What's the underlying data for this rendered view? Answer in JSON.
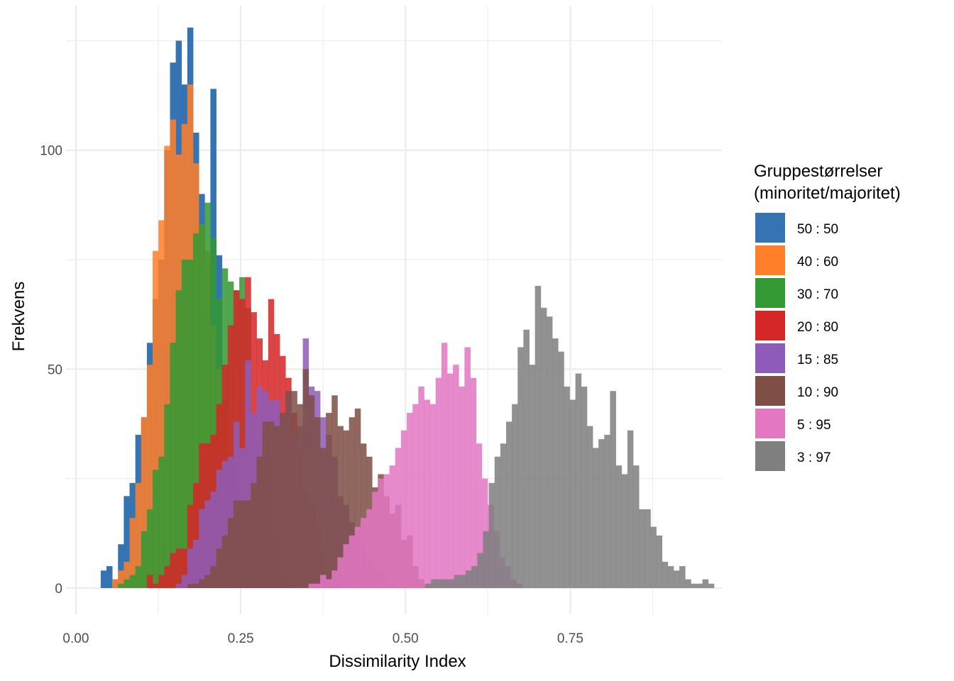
{
  "chart_data": {
    "type": "histogram",
    "xlabel": "Dissimilarity Index",
    "ylabel": "Frekvens",
    "xlim": [
      -0.015,
      0.98
    ],
    "ylim": [
      -6,
      133
    ],
    "x_ticks": [
      {
        "value": 0.0,
        "label": "0.00"
      },
      {
        "value": 0.25,
        "label": "0.25"
      },
      {
        "value": 0.5,
        "label": "0.50"
      },
      {
        "value": 0.75,
        "label": "0.75"
      }
    ],
    "y_ticks": [
      {
        "value": 0,
        "label": "0"
      },
      {
        "value": 50,
        "label": "50"
      },
      {
        "value": 100,
        "label": "100"
      }
    ],
    "bin_width": 0.00876,
    "legend": {
      "title_line1": "Gruppestørrelser",
      "title_line2": "(minoritet/majoritet)"
    },
    "series": [
      {
        "name": "50 : 50",
        "color": "#3573b2",
        "start": 0.0376,
        "values": [
          4,
          5,
          2,
          10,
          21,
          24,
          35,
          39,
          56,
          66,
          75,
          100,
          120,
          125,
          115,
          128,
          104,
          90,
          73,
          114,
          76,
          43,
          31,
          16,
          7,
          3,
          1,
          1
        ]
      },
      {
        "name": "40 : 60",
        "color": "#ff7f2a",
        "start": 0.0551,
        "values": [
          2,
          4,
          6,
          16,
          24,
          39,
          51,
          77,
          84,
          101,
          107,
          99,
          106,
          115,
          97,
          83,
          77,
          60,
          50,
          39,
          23,
          17,
          12,
          7,
          3,
          1,
          1
        ]
      },
      {
        "name": "30 : 70",
        "color": "#339933",
        "start": 0.0639,
        "values": [
          1,
          2,
          3,
          5,
          13,
          18,
          27,
          30,
          42,
          56,
          68,
          75,
          75,
          81,
          83,
          88,
          80,
          66,
          73,
          70,
          68,
          71,
          64,
          39,
          34,
          28,
          13,
          7,
          3,
          1
        ]
      },
      {
        "name": "20 : 80",
        "color": "#d62728",
        "start": 0.1077,
        "values": [
          3,
          1,
          3,
          5,
          8,
          9,
          9,
          19,
          24,
          33,
          33,
          35,
          42,
          51,
          60,
          68,
          66,
          71,
          63,
          57,
          52,
          66,
          58,
          53,
          48,
          40,
          31,
          22,
          19,
          14,
          8,
          4,
          3,
          2
        ]
      },
      {
        "name": "15 : 85",
        "color": "#8e5cb8",
        "start": 0.1515,
        "values": [
          1,
          3,
          9,
          11,
          18,
          20,
          22,
          27,
          29,
          30,
          38,
          32,
          52,
          40,
          46,
          45,
          43,
          43,
          39,
          44,
          35,
          37,
          57,
          46,
          45,
          39,
          35,
          30,
          21,
          19,
          15,
          13,
          10,
          7,
          5,
          4,
          2,
          1
        ]
      },
      {
        "name": "10 : 90",
        "color": "#7f4f45",
        "start": 0.169,
        "values": [
          1,
          1,
          2,
          3,
          5,
          9,
          12,
          16,
          20,
          20,
          20,
          24,
          30,
          38,
          38,
          37,
          40,
          45,
          45,
          42,
          50,
          44,
          39,
          32,
          40,
          44,
          37,
          36,
          39,
          41,
          33,
          30,
          23,
          26,
          21,
          17,
          19,
          11,
          12,
          5,
          2,
          1
        ]
      },
      {
        "name": "5 : 95",
        "color": "#e377c2",
        "start": 0.353,
        "values": [
          1,
          1,
          3,
          2,
          4,
          7,
          10,
          12,
          14,
          16,
          18,
          22,
          25,
          26,
          28,
          32,
          36,
          40,
          42,
          46,
          43,
          42,
          48,
          56,
          49,
          51,
          46,
          55,
          48,
          33,
          25,
          19,
          13,
          7,
          5,
          2,
          1
        ]
      },
      {
        "name": "3 : 97",
        "color": "#7f7f7f",
        "start": 0.53,
        "values": [
          1,
          2,
          2,
          2,
          2,
          3,
          3,
          4,
          5,
          8,
          13,
          24,
          30,
          33,
          38,
          42,
          55,
          59,
          51,
          69,
          64,
          62,
          57,
          54,
          46,
          43,
          49,
          46,
          37,
          32,
          34,
          35,
          45,
          28,
          26,
          36,
          28,
          18,
          18,
          14,
          12,
          6,
          5,
          4,
          5,
          2,
          1,
          1,
          2,
          1
        ]
      }
    ]
  }
}
